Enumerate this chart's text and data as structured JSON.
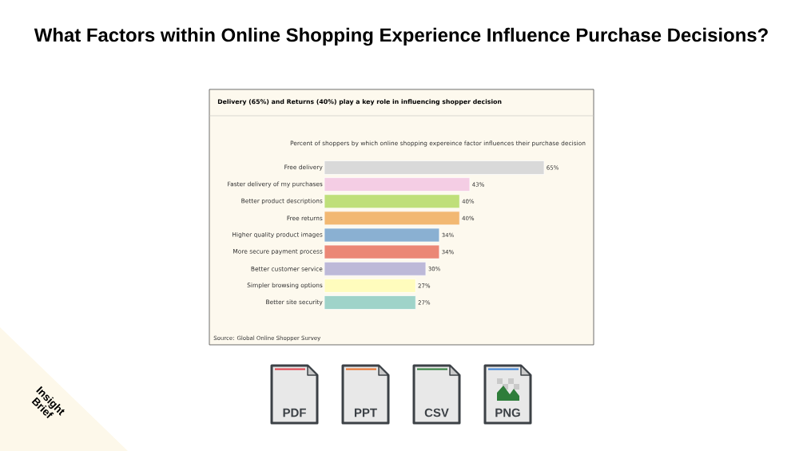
{
  "chart_data": {
    "type": "bar",
    "orientation": "horizontal",
    "title": "What Factors within Online Shopping Experience Influence Purchase Decisions?",
    "subtitle": "Delivery (65%) and Returns (40%) play a key role in influencing shopper decision",
    "annotations": [
      "Percent of shoppers by which online shopping expereince factor influences their purchase decision",
      "Source: Global Online Shopper Survey",
      "PDF",
      "PPT",
      "CSV",
      "PNG",
      "Insight Brief"
    ],
    "categories": [
      "Free delivery",
      "Faster delivery of my purchases",
      "Better product descriptions",
      "Free returns",
      "Higher quality product images",
      "More secure payment process",
      "Better customer service",
      "Simpler browsing options",
      "Better site security"
    ],
    "values": [
      65,
      43,
      40,
      40,
      34,
      34,
      30,
      27,
      27
    ],
    "colors": [
      "#d9d9d9",
      "#f4cde4",
      "#bfdf7a",
      "#f2b872",
      "#8ab0d2",
      "#eb8776",
      "#bdb9d8",
      "#fffcbd",
      "#9fd3c9"
    ],
    "value_labels": [
      "65%",
      "43%",
      "40%",
      "40%",
      "34%",
      "34%",
      "30%",
      "27%",
      "27%"
    ]
  }
}
